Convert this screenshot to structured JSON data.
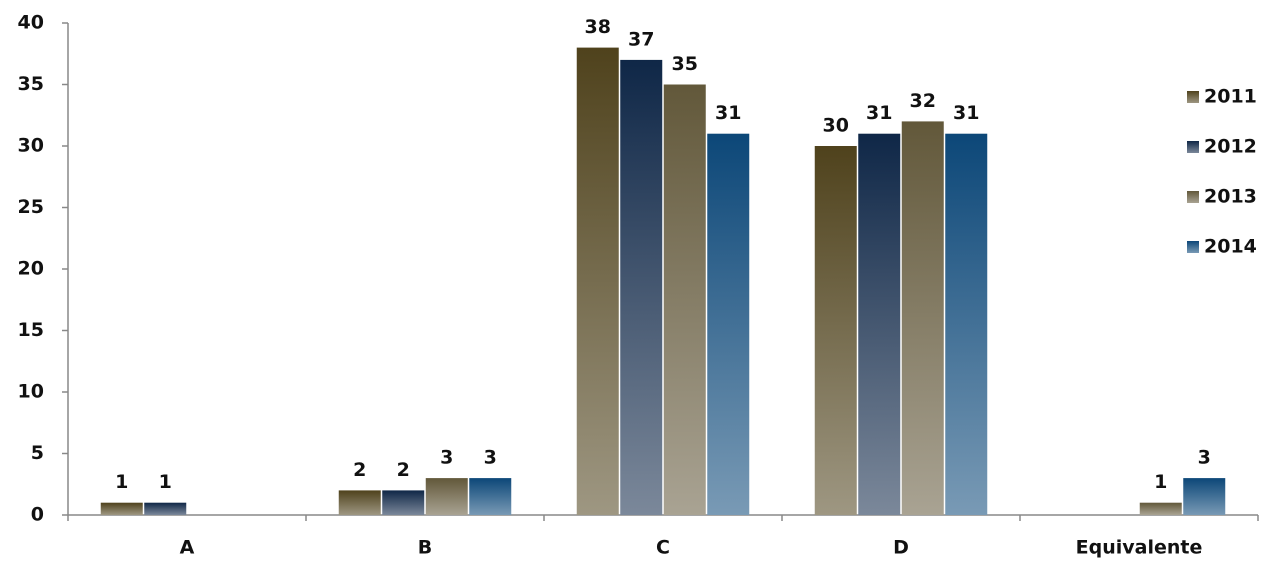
{
  "chart_data": {
    "type": "bar",
    "categories": [
      "A",
      "B",
      "C",
      "D",
      "Equivalente"
    ],
    "series": [
      {
        "name": "2011",
        "color": "#4f421c",
        "values": [
          1,
          2,
          38,
          30,
          null
        ]
      },
      {
        "name": "2012",
        "color": "#0f2747",
        "values": [
          1,
          2,
          37,
          31,
          null
        ]
      },
      {
        "name": "2013",
        "color": "#62583a",
        "values": [
          null,
          3,
          35,
          32,
          1
        ]
      },
      {
        "name": "2014",
        "color": "#0c4778",
        "values": [
          null,
          3,
          31,
          31,
          3
        ]
      }
    ],
    "ylim": [
      0,
      40
    ],
    "yticks": [
      0,
      5,
      10,
      15,
      20,
      25,
      30,
      35,
      40
    ],
    "legend": "right",
    "grid": false
  }
}
